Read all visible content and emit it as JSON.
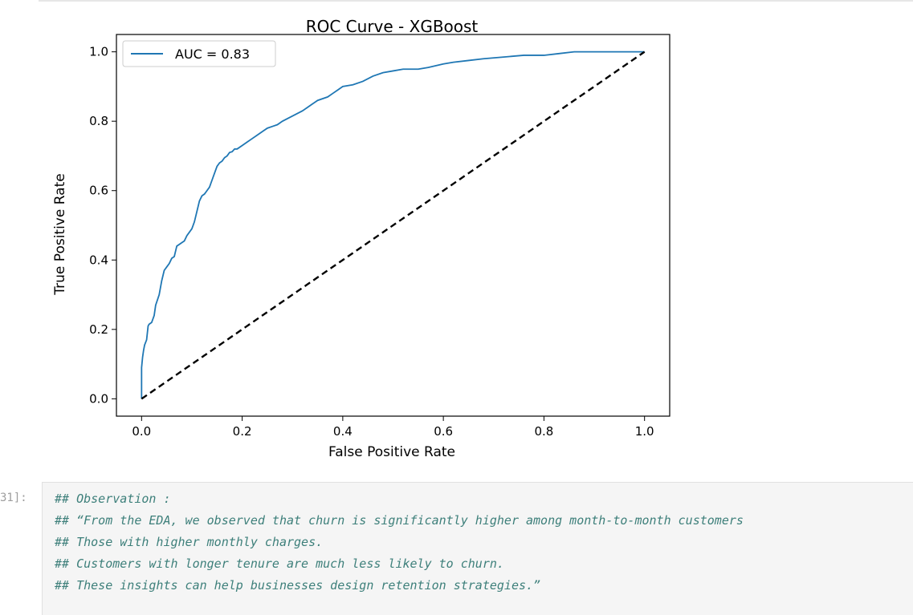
{
  "cell": {
    "prompt": "31]:",
    "code_lines": [
      "## Observation :",
      "## “From the EDA, we observed that churn is significantly higher among month-to-month customers",
      "## Those with higher monthly charges.",
      "## Customers with longer tenure are much less likely to churn.",
      "## These insights can help businesses design retention strategies.”"
    ]
  },
  "colors": {
    "roc_line": "#1f77b4",
    "diagonal": "#000000",
    "comment_text": "#3d7f7a",
    "cell_bg": "#f5f5f5"
  },
  "chart_data": {
    "type": "line",
    "title": "ROC Curve - XGBoost",
    "xlabel": "False Positive Rate",
    "ylabel": "True Positive Rate",
    "xlim": [
      -0.05,
      1.05
    ],
    "ylim": [
      -0.05,
      1.05
    ],
    "xticks": [
      "0.0",
      "0.2",
      "0.4",
      "0.6",
      "0.8",
      "1.0"
    ],
    "yticks": [
      "0.0",
      "0.2",
      "0.4",
      "0.6",
      "0.8",
      "1.0"
    ],
    "legend": {
      "placement": "upper-left",
      "entries": [
        "AUC = 0.83"
      ]
    },
    "series": [
      {
        "name": "AUC = 0.83",
        "style": "solid",
        "x": [
          0.0,
          0.0,
          0.002,
          0.004,
          0.006,
          0.01,
          0.013,
          0.015,
          0.02,
          0.025,
          0.028,
          0.035,
          0.04,
          0.045,
          0.05,
          0.055,
          0.06,
          0.065,
          0.07,
          0.08,
          0.085,
          0.09,
          0.1,
          0.105,
          0.11,
          0.115,
          0.12,
          0.125,
          0.13,
          0.135,
          0.14,
          0.145,
          0.15,
          0.155,
          0.16,
          0.165,
          0.17,
          0.175,
          0.18,
          0.185,
          0.19,
          0.2,
          0.21,
          0.22,
          0.23,
          0.24,
          0.25,
          0.26,
          0.27,
          0.28,
          0.3,
          0.32,
          0.33,
          0.34,
          0.35,
          0.37,
          0.38,
          0.39,
          0.4,
          0.42,
          0.44,
          0.46,
          0.48,
          0.5,
          0.52,
          0.55,
          0.57,
          0.6,
          0.62,
          0.65,
          0.68,
          0.72,
          0.76,
          0.8,
          0.83,
          0.86,
          0.88,
          0.92,
          1.0
        ],
        "y": [
          0.0,
          0.09,
          0.12,
          0.14,
          0.155,
          0.17,
          0.21,
          0.215,
          0.22,
          0.24,
          0.27,
          0.3,
          0.34,
          0.37,
          0.38,
          0.39,
          0.405,
          0.41,
          0.44,
          0.45,
          0.455,
          0.47,
          0.49,
          0.51,
          0.54,
          0.57,
          0.585,
          0.59,
          0.6,
          0.61,
          0.63,
          0.65,
          0.67,
          0.68,
          0.685,
          0.695,
          0.7,
          0.71,
          0.712,
          0.72,
          0.72,
          0.73,
          0.74,
          0.75,
          0.76,
          0.77,
          0.78,
          0.785,
          0.79,
          0.8,
          0.815,
          0.83,
          0.84,
          0.85,
          0.86,
          0.87,
          0.88,
          0.89,
          0.9,
          0.905,
          0.915,
          0.93,
          0.94,
          0.945,
          0.95,
          0.95,
          0.955,
          0.965,
          0.97,
          0.975,
          0.98,
          0.985,
          0.99,
          0.99,
          0.995,
          1.0,
          1.0,
          1.0,
          1.0
        ]
      },
      {
        "style": "dashed",
        "x": [
          0.0,
          1.0
        ],
        "y": [
          0.0,
          1.0
        ]
      }
    ]
  }
}
